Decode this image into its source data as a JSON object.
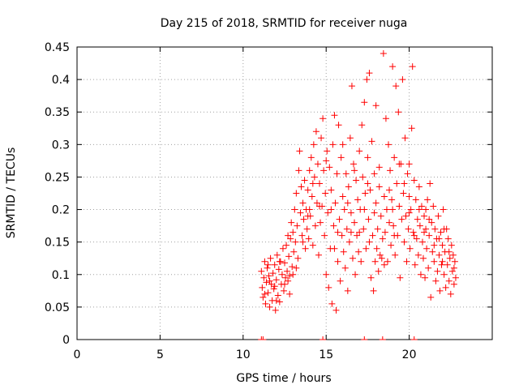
{
  "chart_data": {
    "type": "scatter",
    "title": "Day 215 of 2018, SRMTID for receiver nuga",
    "xlabel": "GPS time / hours",
    "ylabel": "SRMTID / TECUs",
    "xlim": [
      0,
      25
    ],
    "ylim": [
      0,
      0.45
    ],
    "x_ticks": [
      0,
      5,
      10,
      15,
      20
    ],
    "y_ticks": [
      0,
      0.05,
      0.1,
      0.15,
      0.2,
      0.25,
      0.3,
      0.35,
      0.4,
      0.45
    ],
    "x_tick_labels": [
      "0",
      "5",
      "10",
      "15",
      "20"
    ],
    "y_tick_labels": [
      "0",
      "0.05",
      "0.1",
      "0.15",
      "0.2",
      "0.25",
      "0.3",
      "0.35",
      "0.4",
      "0.45"
    ],
    "grid": true,
    "marker": "+",
    "color": "#ff0000",
    "series": [
      {
        "name": "SRMTID",
        "points": [
          [
            11.1,
            0.105
          ],
          [
            11.15,
            0.08
          ],
          [
            11.2,
            0.065
          ],
          [
            11.25,
            0.095
          ],
          [
            11.3,
            0.12
          ],
          [
            11.35,
            0.055
          ],
          [
            11.4,
            0.088
          ],
          [
            11.45,
            0.11
          ],
          [
            11.5,
            0.072
          ],
          [
            11.55,
            0.098
          ],
          [
            11.6,
            0.05
          ],
          [
            11.65,
            0.125
          ],
          [
            11.7,
            0.085
          ],
          [
            11.75,
            0.06
          ],
          [
            11.8,
            0.102
          ],
          [
            11.85,
            0.078
          ],
          [
            11.9,
            0.115
          ],
          [
            11.95,
            0.045
          ],
          [
            12.0,
            0.092
          ],
          [
            12.05,
            0.13
          ],
          [
            12.1,
            0.068
          ],
          [
            12.15,
            0.108
          ],
          [
            12.2,
            0.058
          ],
          [
            12.25,
            0.12
          ],
          [
            12.3,
            0.085
          ],
          [
            12.35,
            0.1
          ],
          [
            12.4,
            0.14
          ],
          [
            12.45,
            0.075
          ],
          [
            12.5,
            0.118
          ],
          [
            12.55,
            0.095
          ],
          [
            12.6,
            0.145
          ],
          [
            12.65,
            0.105
          ],
          [
            12.7,
            0.16
          ],
          [
            12.75,
            0.128
          ],
          [
            12.8,
            0.098
          ],
          [
            12.85,
            0.155
          ],
          [
            12.9,
            0.18
          ],
          [
            12.95,
            0.112
          ],
          [
            13.0,
            0.165
          ],
          [
            13.05,
            0.135
          ],
          [
            13.1,
            0.2
          ],
          [
            13.15,
            0.15
          ],
          [
            13.2,
            0.225
          ],
          [
            13.25,
            0.175
          ],
          [
            13.3,
            0.125
          ],
          [
            13.35,
            0.26
          ],
          [
            13.4,
            0.29
          ],
          [
            13.45,
            0.195
          ],
          [
            13.5,
            0.235
          ],
          [
            13.55,
            0.16
          ],
          [
            13.6,
            0.21
          ],
          [
            13.65,
            0.185
          ],
          [
            13.7,
            0.245
          ],
          [
            13.75,
            0.14
          ],
          [
            13.8,
            0.2
          ],
          [
            13.85,
            0.17
          ],
          [
            13.9,
            0.23
          ],
          [
            13.95,
            0.155
          ],
          [
            14.0,
            0.26
          ],
          [
            14.05,
            0.19
          ],
          [
            14.1,
            0.28
          ],
          [
            14.15,
            0.22
          ],
          [
            14.2,
            0.145
          ],
          [
            14.25,
            0.3
          ],
          [
            14.3,
            0.25
          ],
          [
            14.35,
            0.175
          ],
          [
            14.4,
            0.32
          ],
          [
            14.45,
            0.21
          ],
          [
            14.5,
            0.27
          ],
          [
            14.55,
            0.13
          ],
          [
            14.6,
            0.24
          ],
          [
            14.65,
            0.18
          ],
          [
            14.7,
            0.31
          ],
          [
            14.75,
            0.205
          ],
          [
            14.8,
            0.34
          ],
          [
            14.85,
            0.26
          ],
          [
            14.9,
            0.16
          ],
          [
            14.95,
            0.225
          ],
          [
            15.0,
            0.1
          ],
          [
            15.05,
            0.29
          ],
          [
            15.1,
            0.195
          ],
          [
            15.15,
            0.08
          ],
          [
            15.2,
            0.265
          ],
          [
            15.25,
            0.14
          ],
          [
            15.3,
            0.23
          ],
          [
            15.35,
            0.055
          ],
          [
            15.4,
            0.3
          ],
          [
            15.45,
            0.175
          ],
          [
            15.5,
            0.345
          ],
          [
            15.55,
            0.21
          ],
          [
            15.6,
            0.045
          ],
          [
            15.65,
            0.255
          ],
          [
            15.7,
            0.12
          ],
          [
            15.75,
            0.33
          ],
          [
            15.8,
            0.185
          ],
          [
            15.85,
            0.09
          ],
          [
            15.9,
            0.28
          ],
          [
            15.95,
            0.16
          ],
          [
            16.0,
            0.22
          ],
          [
            16.05,
            0.135
          ],
          [
            16.1,
            0.2
          ],
          [
            16.15,
            0.11
          ],
          [
            16.2,
            0.255
          ],
          [
            16.25,
            0.17
          ],
          [
            16.3,
            0.075
          ],
          [
            16.35,
            0.235
          ],
          [
            16.4,
            0.15
          ],
          [
            16.45,
            0.31
          ],
          [
            16.5,
            0.195
          ],
          [
            16.55,
            0.39
          ],
          [
            16.6,
            0.125
          ],
          [
            16.65,
            0.27
          ],
          [
            16.7,
            0.18
          ],
          [
            16.75,
            0.1
          ],
          [
            16.8,
            0.245
          ],
          [
            16.85,
            0.16
          ],
          [
            16.9,
            0.215
          ],
          [
            16.95,
            0.135
          ],
          [
            17.0,
            0.29
          ],
          [
            17.05,
            0.2
          ],
          [
            17.1,
            0.12
          ],
          [
            17.15,
            0.33
          ],
          [
            17.2,
            0.25
          ],
          [
            17.25,
            0.17
          ],
          [
            17.3,
            0.365
          ],
          [
            17.35,
            0.225
          ],
          [
            17.4,
            0.14
          ],
          [
            17.45,
            0.4
          ],
          [
            17.5,
            0.28
          ],
          [
            17.55,
            0.185
          ],
          [
            17.6,
            0.41
          ],
          [
            17.65,
            0.23
          ],
          [
            17.7,
            0.095
          ],
          [
            17.75,
            0.305
          ],
          [
            17.8,
            0.16
          ],
          [
            17.85,
            0.075
          ],
          [
            17.9,
            0.255
          ],
          [
            17.95,
            0.12
          ],
          [
            18.0,
            0.21
          ],
          [
            18.05,
            0.14
          ],
          [
            18.1,
            0.17
          ],
          [
            18.15,
            0.105
          ],
          [
            18.2,
            0.235
          ],
          [
            18.25,
            0.13
          ],
          [
            18.3,
            0.19
          ],
          [
            18.35,
            0.125
          ],
          [
            18.4,
            0.155
          ],
          [
            18.45,
            0.44
          ],
          [
            18.5,
            0.22
          ],
          [
            18.55,
            0.165
          ],
          [
            18.6,
            0.34
          ],
          [
            18.65,
            0.2
          ],
          [
            18.7,
            0.12
          ],
          [
            18.75,
            0.3
          ],
          [
            18.8,
            0.18
          ],
          [
            18.85,
            0.26
          ],
          [
            18.9,
            0.145
          ],
          [
            18.95,
            0.215
          ],
          [
            19.0,
            0.42
          ],
          [
            19.05,
            0.175
          ],
          [
            19.1,
            0.28
          ],
          [
            19.15,
            0.13
          ],
          [
            19.2,
            0.39
          ],
          [
            19.25,
            0.24
          ],
          [
            19.3,
            0.16
          ],
          [
            19.35,
            0.35
          ],
          [
            19.4,
            0.205
          ],
          [
            19.45,
            0.095
          ],
          [
            19.5,
            0.27
          ],
          [
            19.55,
            0.185
          ],
          [
            19.6,
            0.4
          ],
          [
            19.65,
            0.225
          ],
          [
            19.7,
            0.15
          ],
          [
            19.75,
            0.31
          ],
          [
            19.8,
            0.19
          ],
          [
            19.85,
            0.12
          ],
          [
            19.9,
            0.255
          ],
          [
            19.95,
            0.17
          ],
          [
            20.0,
            0.27
          ],
          [
            20.05,
            0.14
          ],
          [
            20.1,
            0.2
          ],
          [
            20.15,
            0.325
          ],
          [
            20.2,
            0.42
          ],
          [
            20.25,
            0.165
          ],
          [
            20.3,
            0.245
          ],
          [
            20.35,
            0.115
          ],
          [
            20.4,
            0.215
          ],
          [
            20.45,
            0.155
          ],
          [
            20.5,
            0.185
          ],
          [
            20.55,
            0.13
          ],
          [
            20.6,
            0.235
          ],
          [
            20.65,
            0.175
          ],
          [
            20.7,
            0.1
          ],
          [
            20.75,
            0.205
          ],
          [
            20.8,
            0.15
          ],
          [
            20.85,
            0.125
          ],
          [
            20.9,
            0.19
          ],
          [
            20.95,
            0.095
          ],
          [
            21.0,
            0.17
          ],
          [
            21.05,
            0.14
          ],
          [
            21.1,
            0.215
          ],
          [
            21.15,
            0.11
          ],
          [
            21.2,
            0.16
          ],
          [
            21.25,
            0.24
          ],
          [
            21.3,
            0.065
          ],
          [
            21.35,
            0.18
          ],
          [
            21.4,
            0.135
          ],
          [
            21.45,
            0.205
          ],
          [
            21.5,
            0.12
          ],
          [
            21.55,
            0.17
          ],
          [
            21.6,
            0.09
          ],
          [
            21.65,
            0.155
          ],
          [
            21.7,
            0.105
          ],
          [
            21.75,
            0.19
          ],
          [
            21.8,
            0.13
          ],
          [
            21.85,
            0.075
          ],
          [
            21.9,
            0.165
          ],
          [
            21.95,
            0.115
          ],
          [
            22.0,
            0.145
          ],
          [
            22.05,
            0.2
          ],
          [
            22.1,
            0.1
          ],
          [
            22.15,
            0.135
          ],
          [
            22.2,
            0.08
          ],
          [
            22.25,
            0.17
          ],
          [
            22.3,
            0.115
          ],
          [
            22.35,
            0.155
          ],
          [
            22.4,
            0.09
          ],
          [
            22.45,
            0.125
          ],
          [
            22.5,
            0.07
          ],
          [
            22.55,
            0.145
          ],
          [
            22.6,
            0.105
          ],
          [
            22.65,
            0.13
          ],
          [
            22.7,
            0.085
          ],
          [
            22.75,
            0.12
          ],
          [
            22.8,
            0.095
          ],
          [
            11.3,
            0.07
          ],
          [
            11.6,
            0.09
          ],
          [
            11.9,
            0.082
          ],
          [
            12.2,
            0.12
          ],
          [
            12.5,
            0.085
          ],
          [
            12.8,
            0.07
          ],
          [
            13.2,
            0.11
          ],
          [
            13.6,
            0.15
          ],
          [
            13.9,
            0.19
          ],
          [
            14.2,
            0.24
          ],
          [
            14.6,
            0.205
          ],
          [
            15.0,
            0.275
          ],
          [
            15.3,
            0.2
          ],
          [
            15.7,
            0.165
          ],
          [
            16.0,
            0.3
          ],
          [
            16.3,
            0.21
          ],
          [
            16.7,
            0.26
          ],
          [
            17.0,
            0.165
          ],
          [
            17.3,
            0.2
          ],
          [
            17.6,
            0.15
          ],
          [
            17.9,
            0.195
          ],
          [
            18.2,
            0.265
          ],
          [
            18.5,
            0.115
          ],
          [
            18.8,
            0.23
          ],
          [
            19.1,
            0.16
          ],
          [
            19.4,
            0.27
          ],
          [
            19.7,
            0.24
          ],
          [
            20.0,
            0.195
          ],
          [
            20.3,
            0.16
          ],
          [
            20.6,
            0.2
          ],
          [
            20.9,
            0.165
          ],
          [
            21.2,
            0.185
          ],
          [
            21.5,
            0.145
          ],
          [
            21.8,
            0.155
          ],
          [
            22.1,
            0.17
          ],
          [
            22.4,
            0.135
          ],
          [
            22.7,
            0.11
          ],
          [
            12.0,
            0.06
          ],
          [
            13.0,
            0.1
          ],
          [
            14.0,
            0.2
          ],
          [
            15.5,
            0.14
          ],
          [
            16.5,
            0.165
          ],
          [
            17.5,
            0.24
          ],
          [
            18.0,
            0.36
          ],
          [
            19.0,
            0.2
          ],
          [
            20.0,
            0.22
          ],
          [
            21.0,
            0.2
          ],
          [
            22.0,
            0.12
          ],
          [
            11.5,
            0.115
          ],
          [
            12.7,
            0.09
          ]
        ]
      }
    ],
    "zero_points": [
      11.1,
      11.2,
      14.8,
      17.3,
      18.4,
      20.3
    ]
  }
}
